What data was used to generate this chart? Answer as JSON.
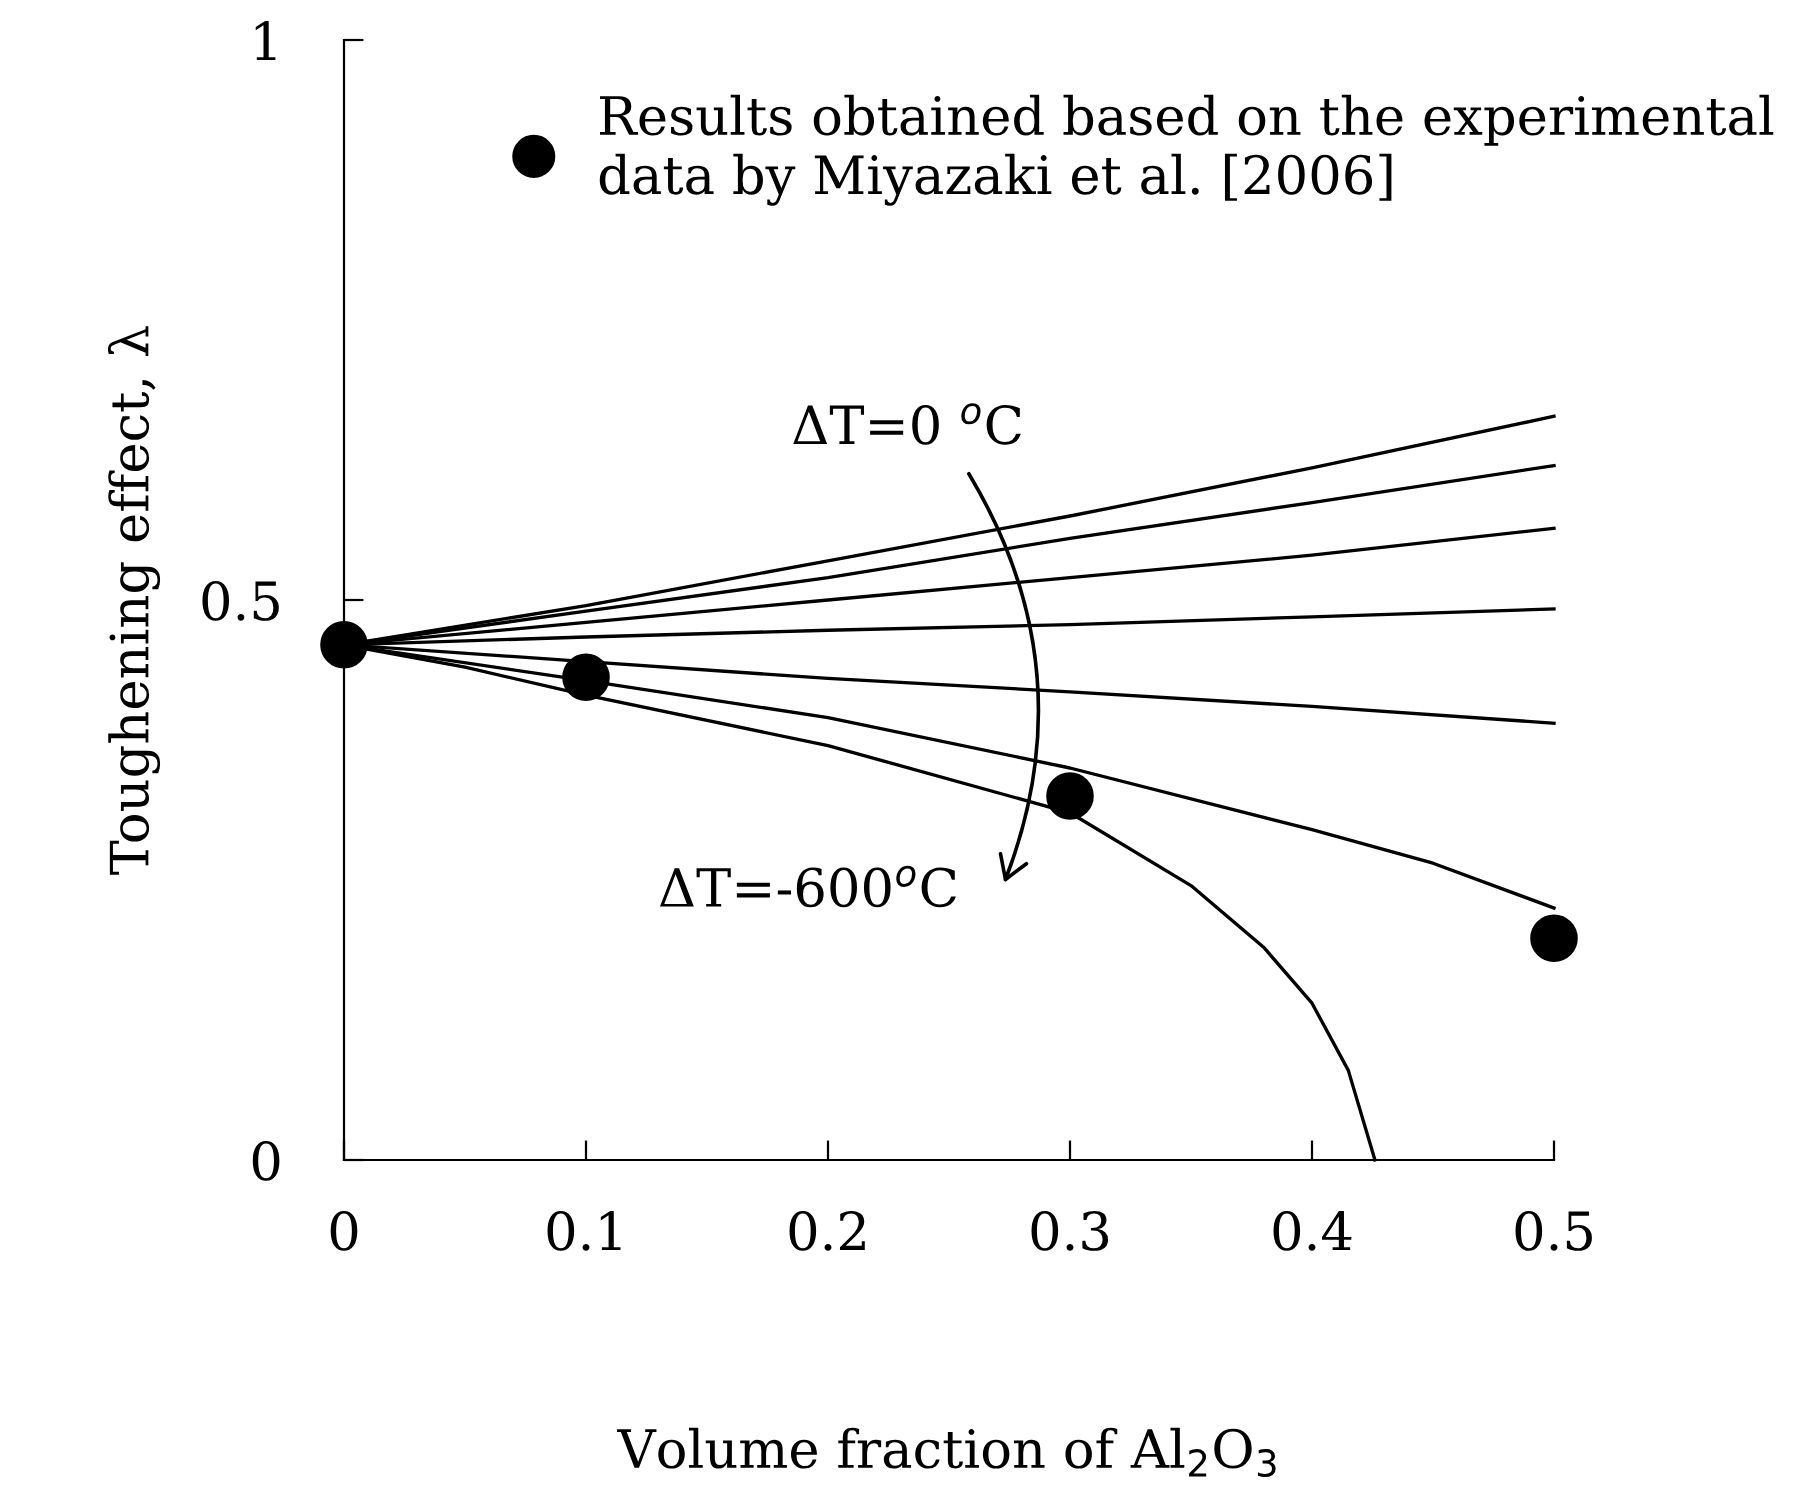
{
  "chart_data": {
    "type": "line",
    "xlabel": "Volume fraction of Al$_{2}$O$_{3}$",
    "ylabel": "Toughening effect, λ",
    "xlim": [
      0,
      0.5
    ],
    "ylim": [
      0,
      1
    ],
    "xticks": [
      0,
      0.1,
      0.2,
      0.3,
      0.4,
      0.5
    ],
    "yticks": [
      0,
      0.5,
      1
    ],
    "grid": false,
    "legend": "top right",
    "marker": "none",
    "line_style": "solid",
    "series": [
      {
        "color": "#000000",
        "x": [
          0,
          0.1,
          0.2,
          0.3,
          0.4,
          0.5
        ],
        "values": [
          0.46,
          0.495,
          0.535,
          0.575,
          0.618,
          0.664
        ]
      },
      {
        "color": "#000000",
        "x": [
          0,
          0.1,
          0.2,
          0.3,
          0.4,
          0.5
        ],
        "values": [
          0.46,
          0.49,
          0.52,
          0.555,
          0.587,
          0.62
        ]
      },
      {
        "color": "#000000",
        "x": [
          0,
          0.1,
          0.2,
          0.3,
          0.4,
          0.5
        ],
        "values": [
          0.46,
          0.48,
          0.5,
          0.52,
          0.54,
          0.564
        ]
      },
      {
        "color": "#000000",
        "x": [
          0,
          0.1,
          0.2,
          0.3,
          0.4,
          0.5
        ],
        "values": [
          0.46,
          0.467,
          0.473,
          0.478,
          0.485,
          0.492
        ]
      },
      {
        "color": "#000000",
        "x": [
          0,
          0.1,
          0.2,
          0.3,
          0.4,
          0.5
        ],
        "values": [
          0.46,
          0.445,
          0.43,
          0.418,
          0.405,
          0.39
        ]
      },
      {
        "color": "#000000",
        "x": [
          0,
          0.1,
          0.2,
          0.3,
          0.4,
          0.45,
          0.5
        ],
        "values": [
          0.46,
          0.428,
          0.395,
          0.35,
          0.295,
          0.265,
          0.225
        ]
      },
      {
        "color": "#000000",
        "x": [
          0,
          0.05,
          0.1,
          0.2,
          0.3,
          0.35,
          0.38,
          0.4,
          0.415,
          0.426
        ],
        "values": [
          0.46,
          0.44,
          0.415,
          0.37,
          0.31,
          0.245,
          0.19,
          0.14,
          0.08,
          0
        ]
      },
      {
        "type": "scatter",
        "marker": "circle",
        "name": "Results obtained based on the experimental\ndata by Miyazaki et al. [2006]",
        "color": "#000000",
        "x": [
          0,
          0.1,
          0.3,
          0.5
        ],
        "values": [
          0.46,
          0.431,
          0.325,
          0.198
        ]
      }
    ],
    "annotations": [
      "ΔT=0 $^{o}$C",
      "ΔT=-600$^{o}$C"
    ]
  }
}
